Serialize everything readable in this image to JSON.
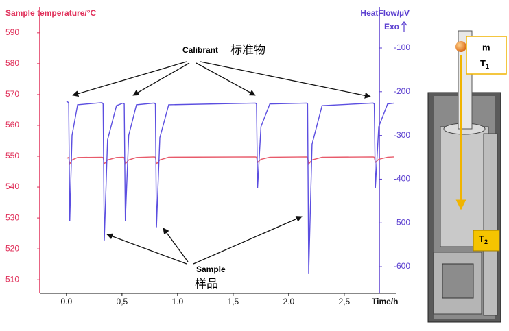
{
  "chart_data": {
    "type": "line",
    "y_label": "Sample temperature/°C",
    "y2_label": "HeatFlow/µV",
    "y2_sublabel": "Exo",
    "x_label": "Time/h",
    "x": [
      0.0,
      0.02,
      0.03,
      0.05,
      0.1,
      0.32,
      0.33,
      0.34,
      0.37,
      0.45,
      0.51,
      0.52,
      0.53,
      0.56,
      0.63,
      0.79,
      0.8,
      0.81,
      0.84,
      0.92,
      1.7,
      1.71,
      1.72,
      1.75,
      1.83,
      2.16,
      2.17,
      2.18,
      2.21,
      2.3,
      2.76,
      2.77,
      2.78,
      2.81,
      2.89,
      2.95
    ],
    "series": [
      {
        "color": "#e85a6a",
        "axis": "y",
        "values": [
          549.3,
          549.6,
          547.5,
          548.8,
          549.6,
          549.7,
          549.6,
          547.5,
          548.8,
          549.6,
          549.7,
          549.6,
          547.5,
          548.8,
          549.6,
          549.8,
          549.7,
          547.5,
          548.8,
          549.7,
          549.8,
          549.7,
          548.0,
          549.0,
          549.7,
          549.8,
          549.7,
          547.5,
          548.8,
          549.7,
          549.8,
          549.7,
          548.0,
          549.0,
          549.7,
          549.8
        ]
      },
      {
        "color": "#5b4ee0",
        "axis": "y2",
        "values": [
          -222,
          -225,
          -495,
          -300,
          -230,
          -225,
          -228,
          -540,
          -310,
          -232,
          -226,
          -228,
          -495,
          -300,
          -230,
          -226,
          -228,
          -510,
          -305,
          -230,
          -226,
          -228,
          -420,
          -280,
          -228,
          -226,
          -228,
          -617,
          -320,
          -232,
          -226,
          -228,
          -420,
          -280,
          -228,
          -226
        ]
      }
    ],
    "xlim": [
      -0.24,
      2.97
    ],
    "xticks": [
      {
        "value": 0,
        "label": "0.0"
      },
      {
        "value": 0.5,
        "label": "0,5"
      },
      {
        "value": 1,
        "label": "1.0"
      },
      {
        "value": 1.5,
        "label": "1,5"
      },
      {
        "value": 2,
        "label": "2.0"
      },
      {
        "value": 2.5,
        "label": "2,5"
      }
    ],
    "ylim": [
      505.6,
      598.4
    ],
    "yticks": [
      510,
      520,
      530,
      540,
      550,
      560,
      570,
      580,
      590
    ],
    "y2lim": [
      -661,
      -6
    ],
    "y2ticks": [
      -100,
      -200,
      -300,
      -400,
      -500,
      -600
    ],
    "annotations": {
      "calibrant": "Calibrant",
      "calibrant_cn": "标准物",
      "sample": "Sample",
      "sample_cn": "样品"
    }
  },
  "diagram": {
    "mass": "m",
    "t1": {
      "base": "T",
      "sub": "1"
    },
    "t2": {
      "base": "T",
      "sub": "2"
    }
  }
}
